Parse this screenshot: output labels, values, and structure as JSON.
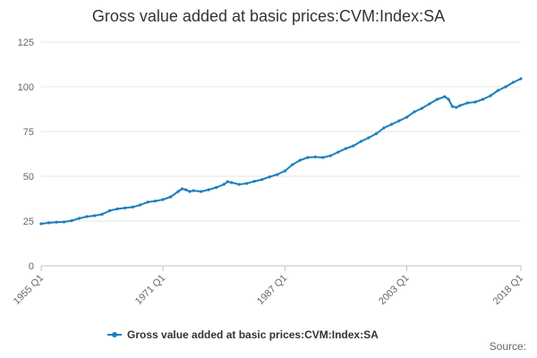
{
  "title": "Gross value added at basic prices:CVM:Index:SA",
  "source_label": "Source:",
  "colors": {
    "series": "#1b7fbd",
    "grid": "#e6e6e6",
    "axis": "#c0c0c0",
    "text": "#666666"
  },
  "chart_data": {
    "type": "line",
    "title": "Gross value added at basic prices:CVM:Index:SA",
    "xlabel": "",
    "ylabel": "",
    "ylim": [
      0,
      125
    ],
    "yticks": [
      0,
      25,
      50,
      75,
      100,
      125
    ],
    "xlim": [
      1955.0,
      2018.0
    ],
    "xticks": [
      {
        "x": 1955.0,
        "label": "1955 Q1"
      },
      {
        "x": 1971.0,
        "label": "1971 Q1"
      },
      {
        "x": 1987.0,
        "label": "1987 Q1"
      },
      {
        "x": 2003.0,
        "label": "2003 Q1"
      },
      {
        "x": 2018.0,
        "label": "2018 Q1"
      }
    ],
    "grid": "horizontal",
    "legend_position": "bottom",
    "series": [
      {
        "name": "Gross value added at basic prices:CVM:Index:SA",
        "points": [
          [
            1955.0,
            23.5
          ],
          [
            1956.0,
            24.0
          ],
          [
            1957.0,
            24.4
          ],
          [
            1958.0,
            24.5
          ],
          [
            1959.0,
            25.2
          ],
          [
            1960.0,
            26.5
          ],
          [
            1961.0,
            27.5
          ],
          [
            1962.0,
            28.0
          ],
          [
            1963.0,
            28.8
          ],
          [
            1964.0,
            30.8
          ],
          [
            1965.0,
            31.8
          ],
          [
            1966.0,
            32.3
          ],
          [
            1967.0,
            32.8
          ],
          [
            1968.0,
            34.0
          ],
          [
            1969.0,
            35.6
          ],
          [
            1970.0,
            36.2
          ],
          [
            1971.0,
            37.0
          ],
          [
            1972.0,
            38.5
          ],
          [
            1973.0,
            41.5
          ],
          [
            1973.5,
            43.0
          ],
          [
            1974.0,
            42.5
          ],
          [
            1974.5,
            41.5
          ],
          [
            1975.0,
            42.0
          ],
          [
            1976.0,
            41.5
          ],
          [
            1977.0,
            42.5
          ],
          [
            1978.0,
            43.8
          ],
          [
            1979.0,
            45.5
          ],
          [
            1979.5,
            47.0
          ],
          [
            1980.0,
            46.5
          ],
          [
            1981.0,
            45.5
          ],
          [
            1982.0,
            46.0
          ],
          [
            1983.0,
            47.2
          ],
          [
            1984.0,
            48.2
          ],
          [
            1985.0,
            49.7
          ],
          [
            1986.0,
            51.0
          ],
          [
            1987.0,
            53.0
          ],
          [
            1988.0,
            56.5
          ],
          [
            1989.0,
            59.0
          ],
          [
            1990.0,
            60.5
          ],
          [
            1991.0,
            60.8
          ],
          [
            1992.0,
            60.5
          ],
          [
            1993.0,
            61.5
          ],
          [
            1994.0,
            63.5
          ],
          [
            1995.0,
            65.5
          ],
          [
            1996.0,
            67.0
          ],
          [
            1997.0,
            69.5
          ],
          [
            1998.0,
            71.5
          ],
          [
            1999.0,
            73.8
          ],
          [
            2000.0,
            77.0
          ],
          [
            2001.0,
            79.0
          ],
          [
            2002.0,
            81.0
          ],
          [
            2003.0,
            83.0
          ],
          [
            2004.0,
            86.0
          ],
          [
            2005.0,
            88.0
          ],
          [
            2006.0,
            90.5
          ],
          [
            2007.0,
            93.0
          ],
          [
            2008.0,
            94.5
          ],
          [
            2008.5,
            93.0
          ],
          [
            2009.0,
            89.0
          ],
          [
            2009.5,
            88.5
          ],
          [
            2010.0,
            89.5
          ],
          [
            2011.0,
            91.0
          ],
          [
            2012.0,
            91.5
          ],
          [
            2013.0,
            93.0
          ],
          [
            2014.0,
            95.0
          ],
          [
            2015.0,
            98.0
          ],
          [
            2016.0,
            100.0
          ],
          [
            2017.0,
            102.5
          ],
          [
            2018.0,
            104.5
          ]
        ]
      }
    ]
  }
}
